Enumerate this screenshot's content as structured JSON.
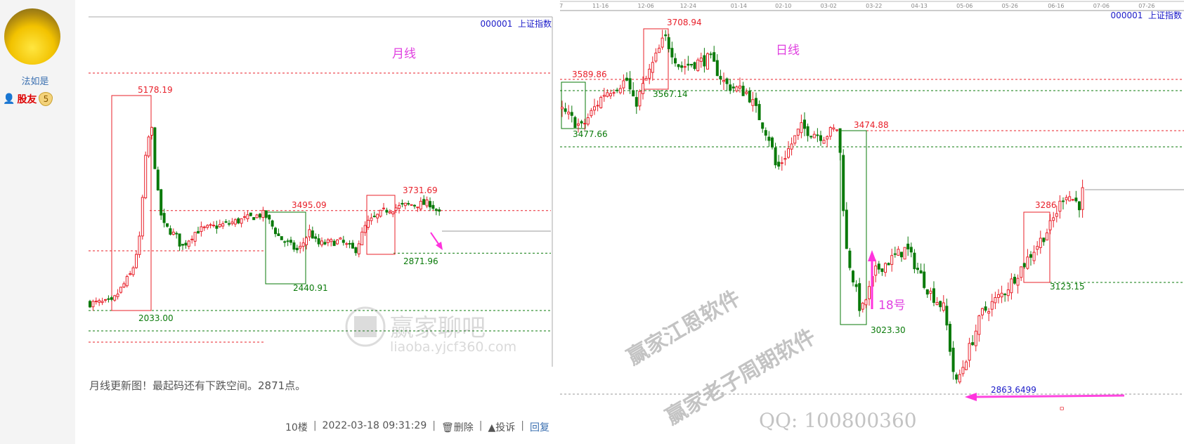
{
  "user": {
    "name": "法如是",
    "rank": "股友",
    "level": "5"
  },
  "monthly_chart": {
    "ticker": "000001  上证指数",
    "title": "月线",
    "labels": {
      "high": "5178.19",
      "low": "2033.00",
      "box2_high": "3495.09",
      "box2_low": "2440.91",
      "box3_high": "3731.69",
      "box3_low": "2871.96"
    },
    "watermark": "赢家聊吧",
    "watermark_url": "liaoba.yjcf360.com",
    "colors": {
      "up": "#e8202a",
      "down": "#0a7a0a",
      "annotation": "#ff33dd",
      "ticker": "#1a1ac8"
    }
  },
  "daily_chart": {
    "ticker": "000001  上证指数",
    "title": "日线",
    "axis_dates": [
      "7",
      "11-16",
      "12-06",
      "12-24",
      "01-14",
      "02-10",
      "03-02",
      "03-22",
      "04-13",
      "05-06",
      "05-26",
      "06-16",
      "07-06",
      "07-26"
    ],
    "labels": {
      "l1": "3589.86",
      "l2": "3477.66",
      "l3": "3708.94",
      "l4": "3567.14",
      "l5": "3474.88",
      "l6": "3023.30",
      "l7": "3286",
      "l8": "3123.15",
      "l9": "2863.6499"
    },
    "annotation": "18号",
    "watermarks": [
      "赢家江恩软件",
      "赢家老子周期软件",
      "QQ: 100800360"
    ]
  },
  "post": {
    "text": "月线更新图！最起码还有下跌空间。2871点。"
  },
  "footer": {
    "floor": "10楼",
    "timestamp": "2022-03-18 09:31:29",
    "delete": "删除",
    "report": "投诉",
    "reply": "回复",
    "sep": "|"
  }
}
